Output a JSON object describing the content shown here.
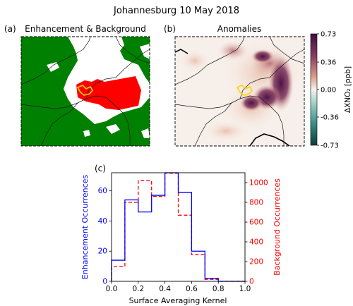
{
  "figure": {
    "title": "Johannesburg 10 May 2018"
  },
  "panels": {
    "a": {
      "tag": "(a)",
      "title": "Enhancement & Background"
    },
    "b": {
      "tag": "(b)",
      "title": "Anomalies"
    },
    "c": {
      "tag": "(c)"
    }
  },
  "colors": {
    "enhancement": "#ff0000",
    "background": "#008000",
    "city_outline": "#ffd400",
    "hist_enhancement": "#0000ff",
    "hist_background": "#ff0000",
    "anomaly_high": "#3b0f3f",
    "anomaly_low": "#0d4f4b"
  },
  "chart_data": [
    {
      "type": "map",
      "panel": "a",
      "title": "Enhancement & Background",
      "legend": []
    },
    {
      "type": "heatmap",
      "panel": "b",
      "title": "Anomalies",
      "colorbar": {
        "label": "ΔXNO₂ [ppb]",
        "ticks": [
          0.73,
          0.36,
          0.0,
          -0.36,
          -0.73
        ],
        "tick_labels": [
          "0.73",
          "0.36",
          "0.00",
          "-0.36",
          "-0.73"
        ],
        "range": [
          -0.73,
          0.73
        ]
      }
    },
    {
      "type": "histogram",
      "panel": "c",
      "xlabel": "Surface Averaging Kernel",
      "ylabel_left": "Enhancement Occurrences",
      "ylabel_right": "Background Occurrences",
      "xlim": [
        0.0,
        1.0
      ],
      "ylim_left": [
        0,
        72
      ],
      "ylim_right": [
        0,
        1100
      ],
      "xticks": [
        0.0,
        0.2,
        0.4,
        0.6,
        0.8,
        1.0
      ],
      "xtick_labels": [
        "0.0",
        "0.2",
        "0.4",
        "0.6",
        "0.8",
        "1.0"
      ],
      "yticks_left": [
        0,
        20,
        40,
        60
      ],
      "ytick_labels_left": [
        "0",
        "20",
        "40",
        "60"
      ],
      "yticks_right": [
        0,
        200,
        400,
        600,
        800,
        1000
      ],
      "ytick_labels_right": [
        "0",
        "200",
        "400",
        "600",
        "800",
        "1000"
      ],
      "bin_edges": [
        0.0,
        0.1,
        0.2,
        0.3,
        0.4,
        0.5,
        0.6,
        0.7,
        0.8,
        0.9,
        1.0
      ],
      "series": [
        {
          "values": [
            14,
            54,
            46,
            57,
            72,
            59,
            20,
            2,
            0,
            0
          ],
          "axis": "left",
          "style": "solid"
        },
        {
          "values": [
            150,
            800,
            1020,
            860,
            1095,
            670,
            270,
            20,
            0,
            0
          ],
          "axis": "right",
          "style": "dashed"
        }
      ]
    }
  ]
}
